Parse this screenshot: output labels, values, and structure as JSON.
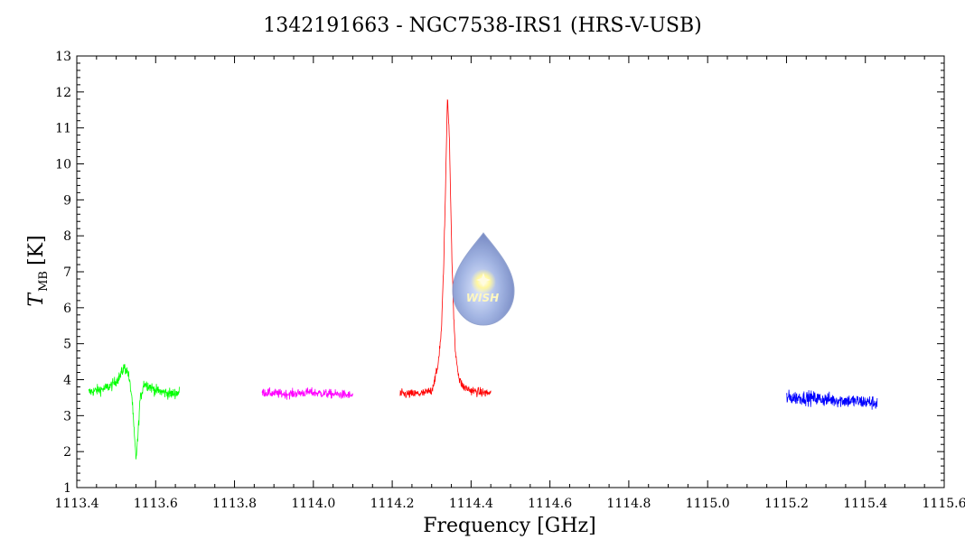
{
  "chart_data": {
    "type": "line",
    "title": "1342191663 - NGC7538-IRS1 (HRS-V-USB)",
    "xlabel": "Frequency [GHz]",
    "ylabel": "T",
    "ylabel_sub": "MB",
    "ylabel_unit": "[K]",
    "xlim": [
      1113.4,
      1115.6
    ],
    "ylim": [
      1,
      13
    ],
    "xticks": [
      1113.4,
      1113.6,
      1113.8,
      1114.0,
      1114.2,
      1114.4,
      1114.6,
      1114.8,
      1115.0,
      1115.2,
      1115.4,
      1115.6
    ],
    "xtick_labels": [
      "1113.4",
      "1113.6",
      "1113.8",
      "1114.0",
      "1114.2",
      "1114.4",
      "1114.6",
      "1114.8",
      "1115.0",
      "1115.2",
      "1115.4",
      "1115.6"
    ],
    "yticks": [
      1,
      2,
      3,
      4,
      5,
      6,
      7,
      8,
      9,
      10,
      11,
      12,
      13
    ],
    "ytick_labels": [
      "1",
      "2",
      "3",
      "4",
      "5",
      "6",
      "7",
      "8",
      "9",
      "10",
      "11",
      "12",
      "13"
    ],
    "grid": false,
    "series": [
      {
        "color": "#00ff00",
        "x": [
          1113.43,
          1113.45,
          1113.47,
          1113.49,
          1113.51,
          1113.52,
          1113.53,
          1113.54,
          1113.545,
          1113.55,
          1113.555,
          1113.56,
          1113.57,
          1113.58,
          1113.6,
          1113.62,
          1113.64,
          1113.66
        ],
        "y": [
          3.65,
          3.7,
          3.75,
          3.85,
          4.1,
          4.35,
          4.2,
          3.5,
          2.6,
          1.8,
          2.4,
          3.4,
          3.9,
          3.85,
          3.7,
          3.65,
          3.6,
          3.65
        ],
        "noise": 0.17
      },
      {
        "color": "#ff00ff",
        "x": [
          1113.87,
          1113.9,
          1113.93,
          1113.96,
          1113.99,
          1114.02,
          1114.05,
          1114.08,
          1114.1
        ],
        "y": [
          3.65,
          3.62,
          3.6,
          3.62,
          3.65,
          3.62,
          3.6,
          3.58,
          3.55
        ],
        "noise": 0.14
      },
      {
        "color": "#ff0000",
        "x": [
          1114.22,
          1114.25,
          1114.28,
          1114.3,
          1114.315,
          1114.325,
          1114.33,
          1114.335,
          1114.34,
          1114.345,
          1114.35,
          1114.355,
          1114.36,
          1114.37,
          1114.38,
          1114.4,
          1114.42,
          1114.45
        ],
        "y": [
          3.6,
          3.6,
          3.62,
          3.7,
          4.3,
          5.4,
          7.0,
          9.2,
          11.9,
          10.8,
          8.0,
          6.0,
          4.8,
          4.0,
          3.8,
          3.7,
          3.65,
          3.62
        ],
        "noise": 0.14
      },
      {
        "color": "#0000ff",
        "x": [
          1115.2,
          1115.25,
          1115.3,
          1115.35,
          1115.4,
          1115.43
        ],
        "y": [
          3.5,
          3.5,
          3.45,
          3.42,
          3.38,
          3.35
        ],
        "noise": 0.22
      }
    ],
    "logo_text": "WISH"
  }
}
